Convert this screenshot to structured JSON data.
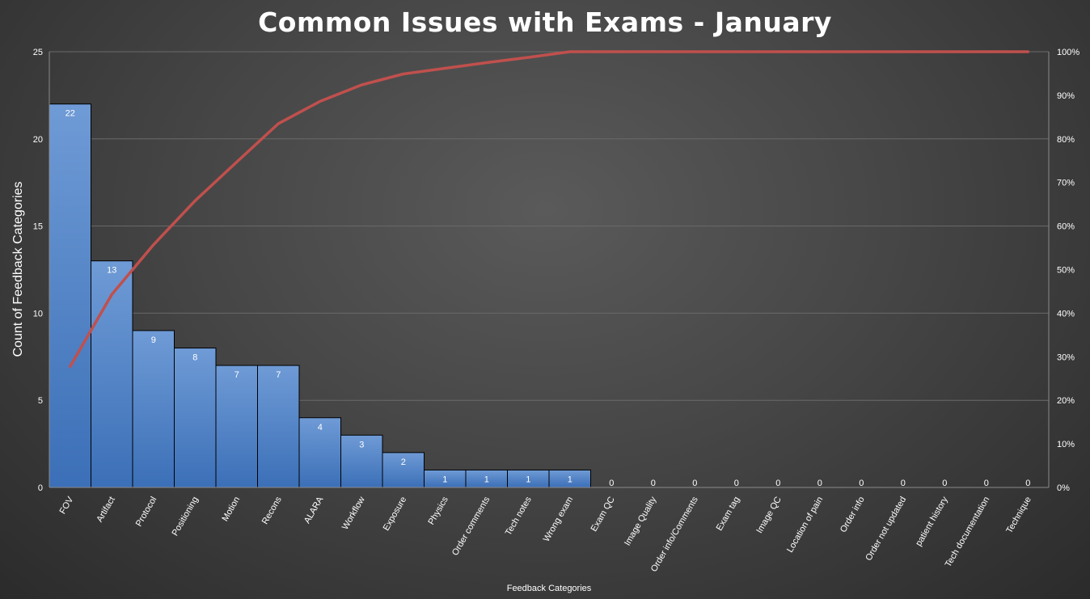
{
  "chart_data": {
    "type": "bar",
    "title": "Common Issues with Exams - January",
    "xlabel": "Feedback Categories",
    "ylabel": "Count of Feedback Categories",
    "categories": [
      "FOV",
      "Artifact",
      "Protocol",
      "Positioning",
      "Motion",
      "Recons",
      "ALARA",
      "Workflow",
      "Exposure",
      "Physics",
      "Order comments",
      "Tech notes",
      "Wrong exam",
      "Exam QC",
      "Image Quality",
      "Order info/Comments",
      "Exam tag",
      "Image QC",
      "Location of pain",
      "Order info",
      "Order not updated",
      "patient history",
      "Tech documentation",
      "Technique"
    ],
    "series": [
      {
        "type": "bar",
        "values": [
          22,
          13,
          9,
          8,
          7,
          7,
          4,
          3,
          2,
          1,
          1,
          1,
          1,
          0,
          0,
          0,
          0,
          0,
          0,
          0,
          0,
          0,
          0,
          0
        ],
        "color": "#4a7fc4"
      },
      {
        "type": "line",
        "axis": "right",
        "values": [
          27.8,
          44.3,
          55.7,
          65.8,
          74.7,
          83.5,
          88.6,
          92.4,
          94.9,
          96.2,
          97.5,
          98.7,
          100,
          100,
          100,
          100,
          100,
          100,
          100,
          100,
          100,
          100,
          100,
          100
        ],
        "color": "#c0504d"
      }
    ],
    "ylim": [
      0,
      25
    ],
    "yticks": [
      "0",
      "5",
      "10",
      "15",
      "20",
      "25"
    ],
    "y2lim": [
      0,
      100
    ],
    "y2ticks": [
      "0%",
      "10%",
      "20%",
      "30%",
      "40%",
      "50%",
      "60%",
      "70%",
      "80%",
      "90%",
      "100%"
    ],
    "data_labels": [
      "22",
      "13",
      "9",
      "8",
      "7",
      "7",
      "4",
      "3",
      "2",
      "1",
      "1",
      "1",
      "1",
      "0",
      "0",
      "0",
      "0",
      "0",
      "0",
      "0",
      "0",
      "0",
      "0",
      "0"
    ],
    "grid": true,
    "legend": "none"
  }
}
